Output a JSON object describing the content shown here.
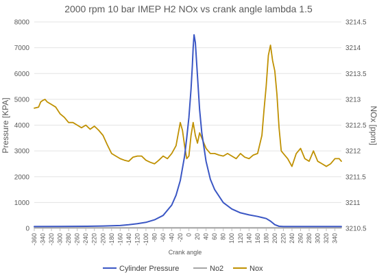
{
  "chart_data": {
    "type": "line",
    "title": "2000 rpm 10 bar IMEP H2 NOx vs crank angle lambda 1.5",
    "xlabel": "Crank angle",
    "ylabel_left": "Pressure [KPA]",
    "ylabel_right": "NOx [ppm]",
    "x_ticks": [
      "-360",
      "-340",
      "-320",
      "-300",
      "-280",
      "-260",
      "-240",
      "-220",
      "-200",
      "-180",
      "-160",
      "-140",
      "-120",
      "-100",
      "-80",
      "-60",
      "-40",
      "-20",
      "0",
      "20",
      "40",
      "60",
      "80",
      "100",
      "120",
      "140",
      "160",
      "180",
      "200",
      "220",
      "240",
      "260",
      "280",
      "300",
      "320",
      "340"
    ],
    "y_left_ticks": [
      "0",
      "1000",
      "2000",
      "3000",
      "4000",
      "5000",
      "6000",
      "7000",
      "8000"
    ],
    "y_right_ticks": [
      "3210.5",
      "3211",
      "3211.5",
      "3212",
      "3212.5",
      "3213",
      "3213.5",
      "3214",
      "3214.5"
    ],
    "ylim_left": [
      0,
      8000
    ],
    "ylim_right": [
      3210.5,
      3214.5
    ],
    "xlim": [
      -360,
      355
    ],
    "grid": "horizontal",
    "legend_position": "bottom",
    "series": [
      {
        "name": "Cylinder Pressure",
        "axis": "left",
        "color": "#3A56C4",
        "x": [
          -360,
          -300,
          -240,
          -200,
          -160,
          -140,
          -120,
          -100,
          -80,
          -60,
          -40,
          -30,
          -20,
          -10,
          -5,
          0,
          5,
          8,
          10,
          12,
          15,
          20,
          25,
          30,
          40,
          50,
          60,
          80,
          100,
          120,
          140,
          160,
          180,
          190,
          200,
          210,
          220,
          260,
          300,
          355
        ],
        "y": [
          70,
          75,
          80,
          90,
          110,
          140,
          180,
          230,
          330,
          500,
          900,
          1280,
          1850,
          2800,
          3500,
          4300,
          5400,
          6300,
          7000,
          7500,
          7200,
          5900,
          4600,
          3700,
          2600,
          1900,
          1500,
          1000,
          750,
          600,
          520,
          460,
          380,
          280,
          140,
          80,
          70,
          70,
          70,
          70
        ]
      },
      {
        "name": "No2",
        "axis": "left",
        "color": "#A5A5A5",
        "x": [
          -360,
          355
        ],
        "y": [
          20,
          20
        ]
      },
      {
        "name": "Nox",
        "axis": "right",
        "color": "#BF9000",
        "x": [
          -360,
          -350,
          -345,
          -340,
          -335,
          -330,
          -320,
          -310,
          -300,
          -290,
          -280,
          -270,
          -260,
          -250,
          -240,
          -230,
          -220,
          -210,
          -200,
          -190,
          -180,
          -170,
          -160,
          -150,
          -140,
          -130,
          -120,
          -110,
          -100,
          -90,
          -80,
          -70,
          -60,
          -50,
          -40,
          -30,
          -20,
          -15,
          -10,
          -5,
          0,
          5,
          10,
          15,
          20,
          25,
          30,
          40,
          50,
          60,
          70,
          80,
          90,
          100,
          110,
          120,
          130,
          140,
          150,
          160,
          170,
          175,
          180,
          185,
          190,
          195,
          200,
          205,
          210,
          215,
          220,
          230,
          240,
          250,
          260,
          270,
          280,
          290,
          300,
          310,
          320,
          330,
          340,
          350,
          355
        ],
        "y": [
          3212.83,
          3212.85,
          3212.95,
          3212.98,
          3213.0,
          3212.95,
          3212.9,
          3212.85,
          3212.72,
          3212.65,
          3212.55,
          3212.55,
          3212.5,
          3212.45,
          3212.5,
          3212.42,
          3212.48,
          3212.4,
          3212.3,
          3212.12,
          3211.95,
          3211.9,
          3211.85,
          3211.82,
          3211.8,
          3211.88,
          3211.9,
          3211.9,
          3211.82,
          3211.78,
          3211.75,
          3211.82,
          3211.9,
          3211.85,
          3211.95,
          3212.1,
          3212.55,
          3212.4,
          3212.1,
          3211.85,
          3211.9,
          3212.3,
          3212.55,
          3212.3,
          3212.15,
          3212.35,
          3212.25,
          3212.05,
          3211.95,
          3211.95,
          3211.92,
          3211.9,
          3211.95,
          3211.9,
          3211.85,
          3211.95,
          3211.88,
          3211.85,
          3211.92,
          3211.95,
          3212.3,
          3212.8,
          3213.25,
          3213.85,
          3214.05,
          3213.75,
          3213.55,
          3213.1,
          3212.45,
          3212.0,
          3211.95,
          3211.85,
          3211.7,
          3211.95,
          3212.05,
          3211.85,
          3211.8,
          3212.0,
          3211.8,
          3211.75,
          3211.7,
          3211.75,
          3211.85,
          3211.85,
          3211.8
        ]
      }
    ]
  }
}
